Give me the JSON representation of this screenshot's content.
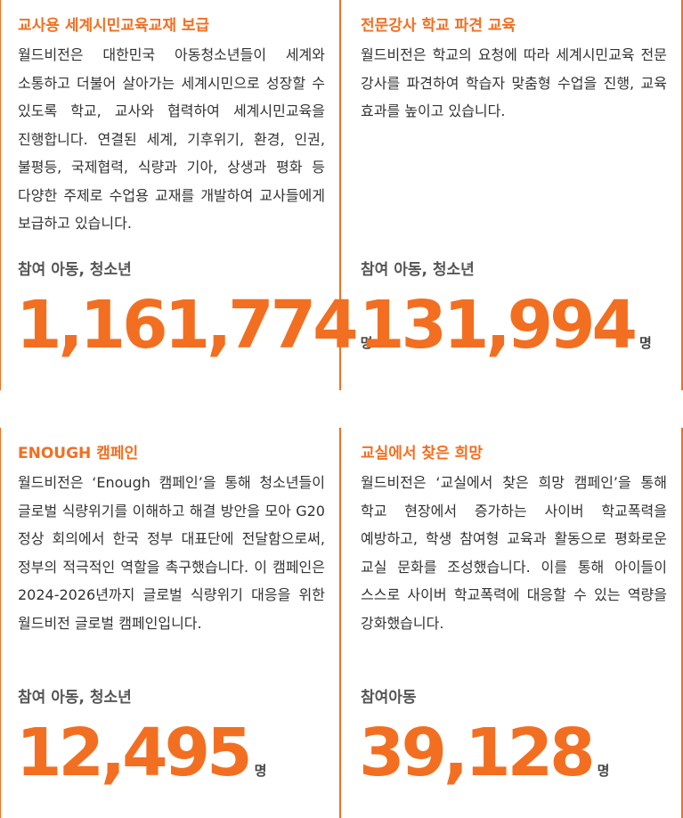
{
  "cards": [
    {
      "title": "교사용 세계시민교육교재 보급",
      "description": "월드비전은 대한민국 아동청소년들이 세계와 소통하고 더불어 살아가는 세계시민으로 성장할 수 있도록 학교, 교사와 협력하여 세계시민교육을 진행합니다. 연결된 세계, 기후위기, 환경, 인권, 불평등, 국제협력, 식량과 기아, 상생과 평화 등 다양한 주제로 수업용 교재를 개발하여 교사들에게 보급하고 있습니다.",
      "label": "참여 아동, 청소년",
      "number": "1,161,774",
      "unit": "명"
    },
    {
      "title": "전문강사 학교 파견 교육",
      "description": "월드비전은 학교의 요청에 따라 세계시민교육 전문 강사를 파견하여 학습자 맞춤형 수업을 진행, 교육 효과를 높이고 있습니다.",
      "label": "참여 아동, 청소년",
      "number": "131,994",
      "unit": "명"
    },
    {
      "title": "ENOUGH 캠페인",
      "description": "월드비전은 ‘Enough 캠페인’을 통해 청소년들이 글로벌 식량위기를 이해하고 해결 방안을 모아 G20 정상 회의에서 한국 정부 대표단에 전달함으로써, 정부의 적극적인 역할을 촉구했습니다. 이 캠페인은 2024-2026년까지 글로벌 식량위기 대응을 위한 월드비전 글로벌 캠페인입니다.",
      "label": "참여 아동, 청소년",
      "number": "12,495",
      "unit": "명"
    },
    {
      "title": "교실에서 찾은 희망",
      "description": "월드비전은 ‘교실에서 찾은 희망 캠페인’을 통해 학교 현장에서 증가하는 사이버 학교폭력을 예방하고, 학생 참여형 교육과 활동으로 평화로운 교실 문화를 조성했습니다. 이를 통해 아이들이 스스로 사이버 학교폭력에 대응할 수 있는 역량을 강화했습니다.",
      "label": "참여아동",
      "number": "39,128",
      "unit": "명"
    }
  ],
  "colors": {
    "accent": "#f26f21",
    "text": "#333333",
    "label": "#555555"
  }
}
